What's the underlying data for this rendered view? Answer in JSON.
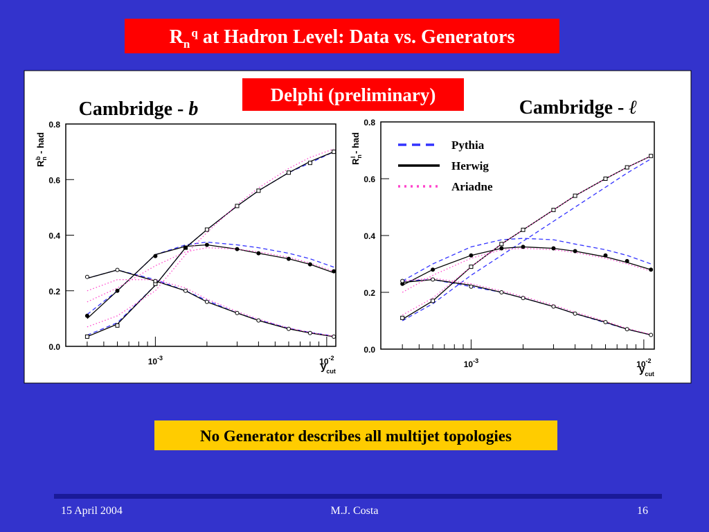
{
  "header": {
    "title": {
      "base": "R",
      "sub": "n",
      "sup": "q",
      "rest": " at Hadron Level: Data vs. Generators"
    }
  },
  "badge": "Delphi (preliminary)",
  "note": "No Generator describes all multijet topologies",
  "footer": {
    "date": "15 April 2004",
    "author": "M.J. Costa",
    "page": "16"
  },
  "chart_data": [
    {
      "type": "line",
      "heading": {
        "text": "Cambridge - ",
        "var": "b"
      },
      "ylabel": {
        "base": "R",
        "sub": "n",
        "sup": "b",
        "rest": " - had"
      },
      "xlabel": {
        "base": "y",
        "sub": "cut"
      },
      "xscale": "log",
      "xlim": [
        0.0003,
        0.0113
      ],
      "ylim": [
        0,
        0.8
      ],
      "xticks": [
        {
          "value": 0.001,
          "label": "10",
          "exp": "-3"
        },
        {
          "value": 0.01,
          "label": "10",
          "exp": "-2"
        }
      ],
      "xminorticks": [
        0.0004,
        0.0005,
        0.0006,
        0.0007,
        0.0008,
        0.0009,
        0.002,
        0.003,
        0.004,
        0.005,
        0.006,
        0.007,
        0.008,
        0.009
      ],
      "yticks": [
        {
          "value": 0,
          "label": "0.0"
        },
        0.2,
        0.4,
        0.6,
        0.8
      ],
      "x": [
        0.0004,
        0.0006,
        0.001,
        0.0015,
        0.002,
        0.003,
        0.004,
        0.006,
        0.008,
        0.011
      ],
      "markers": [
        "square",
        "circle",
        "open-circle"
      ],
      "data": [
        [
          0.035,
          0.075,
          0.225,
          0.355,
          0.42,
          0.505,
          0.56,
          0.625,
          0.66,
          0.7
        ],
        [
          0.11,
          0.2,
          0.325,
          0.355,
          0.365,
          0.35,
          0.335,
          0.315,
          0.295,
          0.27
        ],
        [
          0.25,
          0.275,
          0.235,
          0.2,
          0.16,
          0.12,
          0.093,
          0.063,
          0.048,
          0.035
        ]
      ],
      "series": [
        {
          "color": "#3333ff",
          "dash": "6 4",
          "values": [
            [
              0.04,
              0.085,
              0.22,
              0.355,
              0.42,
              0.505,
              0.56,
              0.625,
              0.66,
              0.7
            ],
            [
              0.115,
              0.2,
              0.33,
              0.365,
              0.375,
              0.365,
              0.355,
              0.335,
              0.315,
              0.285
            ],
            [
              0.245,
              0.275,
              0.24,
              0.2,
              0.165,
              0.12,
              0.095,
              0.065,
              0.05,
              0.037
            ]
          ]
        },
        {
          "color": "#000000",
          "dash": "none",
          "values": [
            [
              0.035,
              0.08,
              0.22,
              0.355,
              0.42,
              0.505,
              0.56,
              0.625,
              0.665,
              0.7
            ],
            [
              0.1,
              0.2,
              0.33,
              0.36,
              0.365,
              0.35,
              0.335,
              0.315,
              0.295,
              0.265
            ],
            [
              0.245,
              0.275,
              0.235,
              0.2,
              0.16,
              0.12,
              0.093,
              0.063,
              0.048,
              0.035
            ]
          ]
        },
        {
          "color": "#ff44cc",
          "dash": "1.5 3",
          "values": [
            [
              0.07,
              0.11,
              0.2,
              0.33,
              0.41,
              0.51,
              0.57,
              0.64,
              0.68,
              0.71
            ],
            [
              0.16,
              0.21,
              0.29,
              0.34,
              0.355,
              0.35,
              0.34,
              0.32,
              0.3,
              0.27
            ],
            [
              0.2,
              0.24,
              0.24,
              0.21,
              0.17,
              0.125,
              0.098,
              0.066,
              0.05,
              0.037
            ]
          ]
        }
      ]
    },
    {
      "type": "line",
      "heading": {
        "text": "Cambridge - ",
        "var": "ℓ"
      },
      "ylabel": {
        "base": "R",
        "sub": "n",
        "sup": "l",
        "rest": " - had"
      },
      "xlabel": {
        "base": "y",
        "sub": "cut"
      },
      "xscale": "log",
      "xlim": [
        0.0003,
        0.0115
      ],
      "ylim": [
        0,
        0.8
      ],
      "legend": "upper left",
      "xticks": [
        {
          "value": 0.001,
          "label": "10",
          "exp": "-3"
        },
        {
          "value": 0.01,
          "label": "10",
          "exp": "-2"
        }
      ],
      "xminorticks": [
        0.0004,
        0.0005,
        0.0006,
        0.0007,
        0.0008,
        0.0009,
        0.002,
        0.003,
        0.004,
        0.005,
        0.006,
        0.007,
        0.008,
        0.009
      ],
      "yticks": [
        {
          "value": 0,
          "label": "0.0"
        },
        0.2,
        0.4,
        0.6,
        0.8
      ],
      "x": [
        0.0004,
        0.0006,
        0.001,
        0.0015,
        0.002,
        0.003,
        0.004,
        0.006,
        0.008,
        0.011
      ],
      "markers": [
        "square",
        "circle",
        "open-circle"
      ],
      "data": [
        [
          0.11,
          0.17,
          0.29,
          0.37,
          0.42,
          0.49,
          0.54,
          0.6,
          0.64,
          0.68
        ],
        [
          0.23,
          0.28,
          0.33,
          0.355,
          0.36,
          0.355,
          0.345,
          0.33,
          0.31,
          0.28
        ],
        [
          0.24,
          0.245,
          0.22,
          0.2,
          0.18,
          0.15,
          0.125,
          0.095,
          0.07,
          0.05
        ]
      ],
      "series": [
        {
          "name": "Pythia",
          "color": "#3333ff",
          "dash": "6 4",
          "values": [
            [
              0.1,
              0.16,
              0.26,
              0.33,
              0.38,
              0.45,
              0.5,
              0.57,
              0.62,
              0.67
            ],
            [
              0.24,
              0.3,
              0.36,
              0.385,
              0.39,
              0.385,
              0.37,
              0.35,
              0.33,
              0.3
            ],
            [
              0.24,
              0.245,
              0.22,
              0.2,
              0.18,
              0.15,
              0.125,
              0.093,
              0.07,
              0.05
            ]
          ]
        },
        {
          "name": "Herwig",
          "color": "#000000",
          "dash": "none",
          "values": [
            [
              0.105,
              0.17,
              0.29,
              0.37,
              0.42,
              0.49,
              0.54,
              0.6,
              0.64,
              0.68
            ],
            [
              0.225,
              0.28,
              0.33,
              0.355,
              0.36,
              0.355,
              0.345,
              0.325,
              0.305,
              0.28
            ],
            [
              0.235,
              0.245,
              0.225,
              0.2,
              0.18,
              0.15,
              0.125,
              0.095,
              0.07,
              0.05
            ]
          ]
        },
        {
          "name": "Ariadne",
          "color": "#ff44cc",
          "dash": "1.5 3",
          "values": [
            [
              0.12,
              0.18,
              0.29,
              0.37,
              0.42,
              0.49,
              0.54,
              0.6,
              0.64,
              0.68
            ],
            [
              0.2,
              0.26,
              0.32,
              0.35,
              0.355,
              0.35,
              0.34,
              0.32,
              0.3,
              0.275
            ],
            [
              0.24,
              0.25,
              0.23,
              0.205,
              0.185,
              0.155,
              0.13,
              0.098,
              0.073,
              0.052
            ]
          ]
        }
      ]
    }
  ]
}
